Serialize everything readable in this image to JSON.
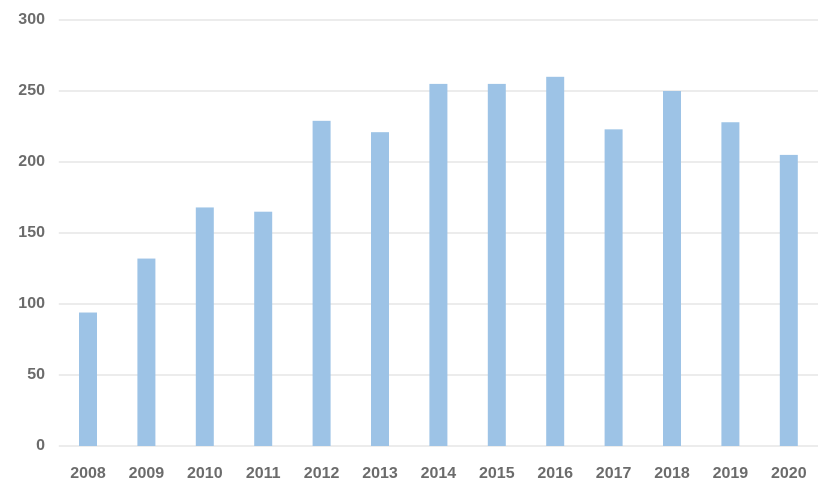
{
  "chart_data": {
    "type": "bar",
    "categories": [
      "2008",
      "2009",
      "2010",
      "2011",
      "2012",
      "2013",
      "2014",
      "2015",
      "2016",
      "2017",
      "2018",
      "2019",
      "2020"
    ],
    "values": [
      94,
      132,
      168,
      165,
      229,
      221,
      255,
      255,
      260,
      223,
      250,
      228,
      205
    ],
    "color": "#9dc3e6",
    "ylim": [
      0,
      300
    ],
    "yticks": [
      0,
      50,
      100,
      150,
      200,
      250,
      300
    ],
    "grid": true
  }
}
